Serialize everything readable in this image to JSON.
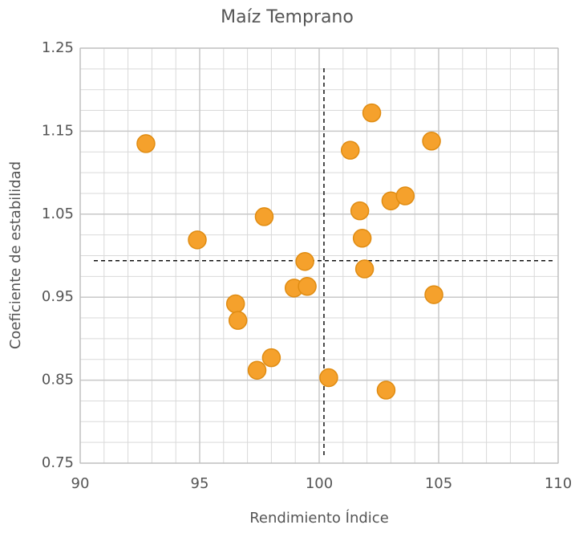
{
  "chart_data": {
    "type": "scatter",
    "title": "Maíz Temprano",
    "x_label": "Rendimiento Índice",
    "y_label": "Coeficiente de estabilidad",
    "x": [
      92.75,
      94.9,
      97.7,
      99.4,
      98.95,
      99.5,
      96.5,
      96.6,
      97.4,
      98.0,
      100.4,
      101.3,
      102.2,
      101.7,
      101.8,
      101.9,
      103.0,
      103.6,
      104.7,
      104.8,
      102.8
    ],
    "values": [
      1.135,
      1.019,
      1.047,
      0.993,
      0.961,
      0.963,
      0.942,
      0.922,
      0.862,
      0.877,
      0.853,
      1.127,
      1.172,
      1.054,
      1.021,
      0.984,
      1.066,
      1.072,
      1.138,
      0.953,
      0.838
    ],
    "color": "#f5a12c",
    "xlim": [
      90,
      110
    ],
    "xticks": [
      90,
      95,
      100,
      105,
      110
    ],
    "ylim": [
      0.75,
      1.25
    ],
    "yticks": [
      1.25,
      1.15,
      1.05,
      0.95,
      0.85,
      0.75
    ],
    "x_reference": 100.2,
    "y_reference": 0.994,
    "grid": true
  }
}
